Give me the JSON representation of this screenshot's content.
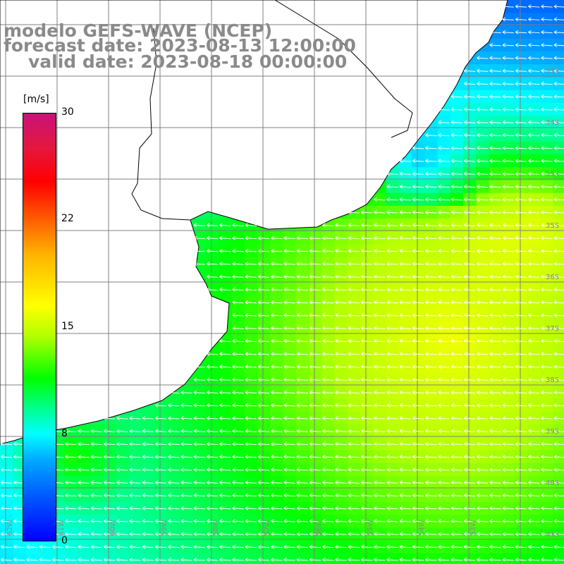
{
  "title": {
    "line1": "modelo GEFS-WAVE (NCEP)",
    "line2": "forecast date: 2023-08-13 12:00:00",
    "line3": "valid date: 2023-08-18 00:00:00"
  },
  "colorbar": {
    "unit": "[m/s]",
    "min": 0,
    "max": 30,
    "ticks": [
      "30",
      "22",
      "15",
      "8",
      "0"
    ],
    "tick_values": [
      30,
      22,
      15,
      8,
      0
    ],
    "colors": [
      "#0000ff",
      "#00aaff",
      "#00ffff",
      "#00ff00",
      "#b4ff00",
      "#ffff00",
      "#ff6a00",
      "#ff0000",
      "#c8127a"
    ]
  },
  "latitude_labels": [
    "33S",
    "34S",
    "35S",
    "36S",
    "37S",
    "38S",
    "39S",
    "40S",
    "41S"
  ],
  "longitude_labels": [
    "62W",
    "61W",
    "60W",
    "59W",
    "58W",
    "57W",
    "56W",
    "55W",
    "54W",
    "53W"
  ],
  "wind_direction": "from east",
  "colors": {
    "land": "#ffffff",
    "coast": "#000000",
    "grid": "#808080",
    "arrows": "#ffffff",
    "labels": "#8a8a8a"
  }
}
